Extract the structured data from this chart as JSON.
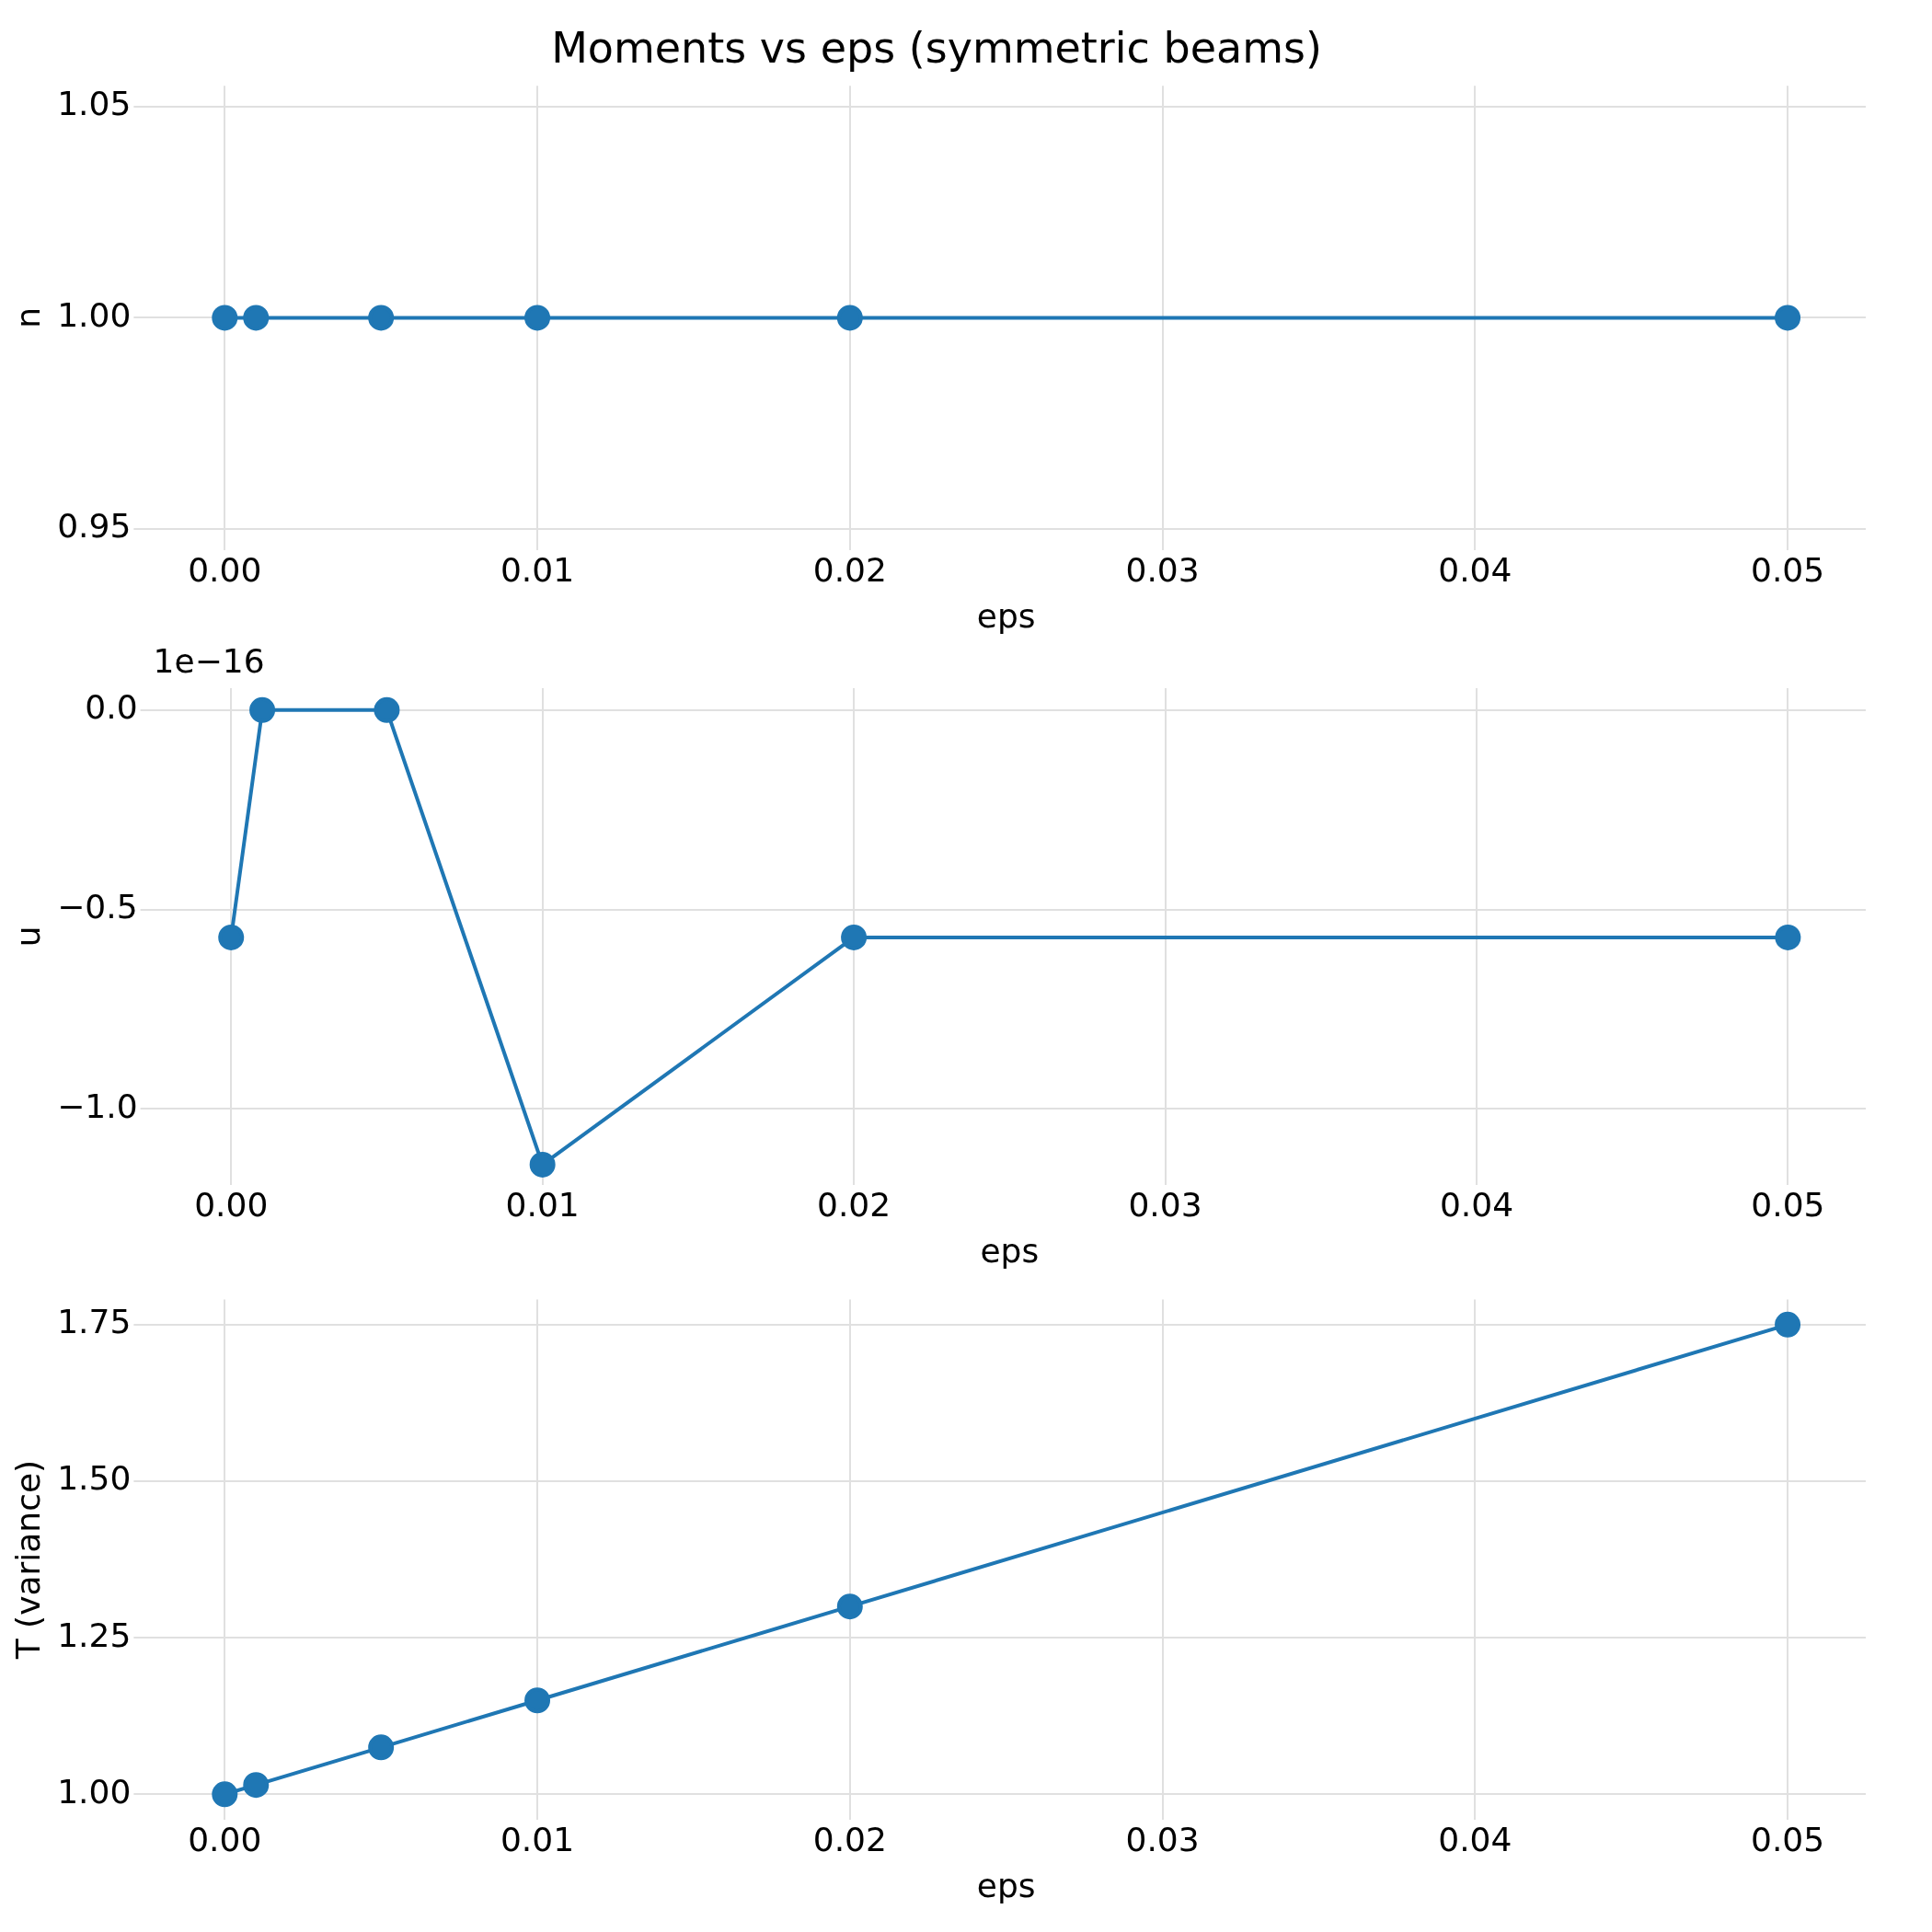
{
  "chart_data": [
    {
      "type": "line",
      "title": "Moments vs eps (symmetric beams)",
      "xlabel": "eps",
      "ylabel": "n",
      "x": [
        0,
        0.001,
        0.005,
        0.01,
        0.02,
        0.05
      ],
      "series": [
        {
          "color": "#1f77b4",
          "values": [
            1.0,
            1.0,
            1.0,
            1.0,
            1.0,
            1.0
          ]
        }
      ],
      "xlim": [
        -0.0025,
        0.0525
      ],
      "xticks": [
        {
          "value": 0,
          "label": "0.00"
        },
        {
          "value": 0.01,
          "label": "0.01"
        },
        {
          "value": 0.02,
          "label": "0.02"
        },
        {
          "value": 0.03,
          "label": "0.03"
        },
        {
          "value": 0.04,
          "label": "0.04"
        },
        {
          "value": 0.05,
          "label": "0.05"
        }
      ],
      "ylim": [
        0.945,
        1.055
      ],
      "yticks": [
        0.95,
        {
          "value": 1,
          "label": "1.00"
        },
        1.05
      ],
      "grid": true,
      "marker": "circle"
    },
    {
      "type": "line",
      "xlabel": "eps",
      "ylabel": "u",
      "annotations": [
        "1e−16"
      ],
      "x": [
        0,
        0.001,
        0.005,
        0.01,
        0.02,
        0.05
      ],
      "series": [
        {
          "color": "#1f77b4",
          "values": [
            -0.57,
            0,
            0,
            -1.14,
            -0.57,
            -0.57
          ]
        }
      ],
      "xlim": [
        -0.0025,
        0.0525
      ],
      "xticks": [
        {
          "value": 0,
          "label": "0.00"
        },
        {
          "value": 0.01,
          "label": "0.01"
        },
        {
          "value": 0.02,
          "label": "0.02"
        },
        {
          "value": 0.03,
          "label": "0.03"
        },
        {
          "value": 0.04,
          "label": "0.04"
        },
        {
          "value": 0.05,
          "label": "0.05"
        }
      ],
      "ylim": [
        -1.19,
        0.055
      ],
      "yticks": [
        {
          "value": -1,
          "label": "−1.0"
        },
        {
          "value": -0.5,
          "label": "−0.5"
        },
        {
          "value": 0,
          "label": "0.0"
        }
      ],
      "grid": true,
      "marker": "circle"
    },
    {
      "type": "line",
      "xlabel": "eps",
      "ylabel": "T (variance)",
      "x": [
        0,
        0.001,
        0.005,
        0.01,
        0.02,
        0.05
      ],
      "series": [
        {
          "color": "#1f77b4",
          "values": [
            1.0,
            1.015,
            1.075,
            1.15,
            1.3,
            1.75
          ]
        }
      ],
      "xlim": [
        -0.0025,
        0.0525
      ],
      "xticks": [
        {
          "value": 0,
          "label": "0.00"
        },
        {
          "value": 0.01,
          "label": "0.01"
        },
        {
          "value": 0.02,
          "label": "0.02"
        },
        {
          "value": 0.03,
          "label": "0.03"
        },
        {
          "value": 0.04,
          "label": "0.04"
        },
        {
          "value": 0.05,
          "label": "0.05"
        }
      ],
      "ylim": [
        0.96,
        1.79
      ],
      "yticks": [
        {
          "value": 1,
          "label": "1.00"
        },
        1.25,
        {
          "value": 1.5,
          "label": "1.50"
        },
        1.75
      ],
      "grid": true,
      "marker": "circle"
    }
  ]
}
